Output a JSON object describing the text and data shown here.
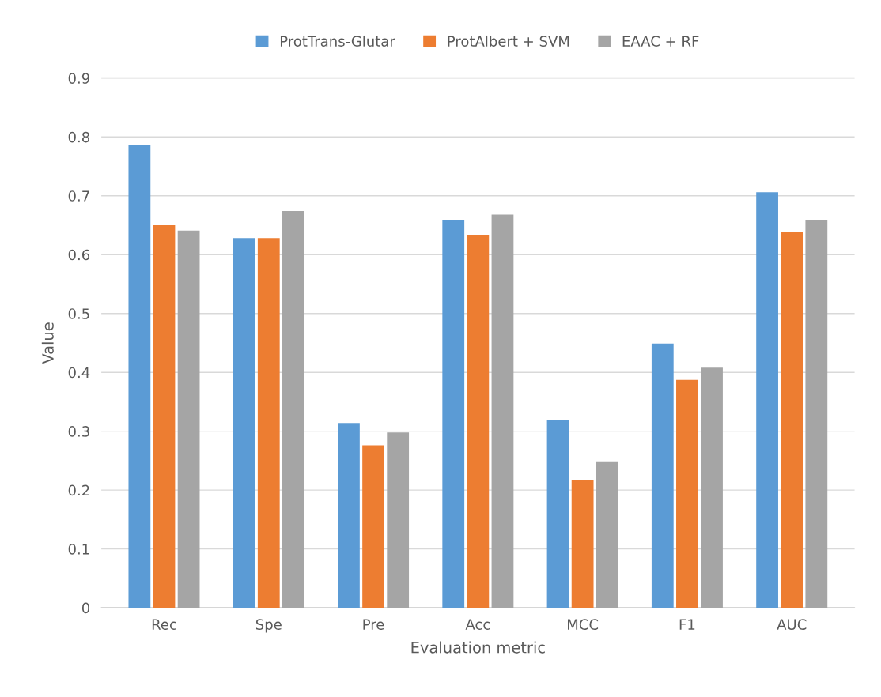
{
  "chart_data": {
    "type": "bar",
    "xlabel": "Evaluation metric",
    "ylabel": "Value",
    "categories": [
      "Rec",
      "Spe",
      "Pre",
      "Acc",
      "MCC",
      "F1",
      "AUC"
    ],
    "series": [
      {
        "name": "ProtTrans-Glutar",
        "color": "#5b9bd5",
        "values": [
          0.787,
          0.628,
          0.314,
          0.658,
          0.319,
          0.449,
          0.706
        ]
      },
      {
        "name": "ProtAlbert + SVM",
        "color": "#ed7d31",
        "values": [
          0.65,
          0.628,
          0.276,
          0.633,
          0.217,
          0.387,
          0.638
        ]
      },
      {
        "name": "EAAC + RF",
        "color": "#a5a5a5",
        "values": [
          0.641,
          0.674,
          0.298,
          0.668,
          0.249,
          0.408,
          0.658
        ]
      }
    ],
    "ylim": [
      0,
      0.9
    ],
    "yticks": [
      0,
      0.1,
      0.2,
      0.3,
      0.4,
      0.5,
      0.6,
      0.7,
      0.8,
      0.9
    ],
    "grid": "y",
    "legend": "top"
  }
}
